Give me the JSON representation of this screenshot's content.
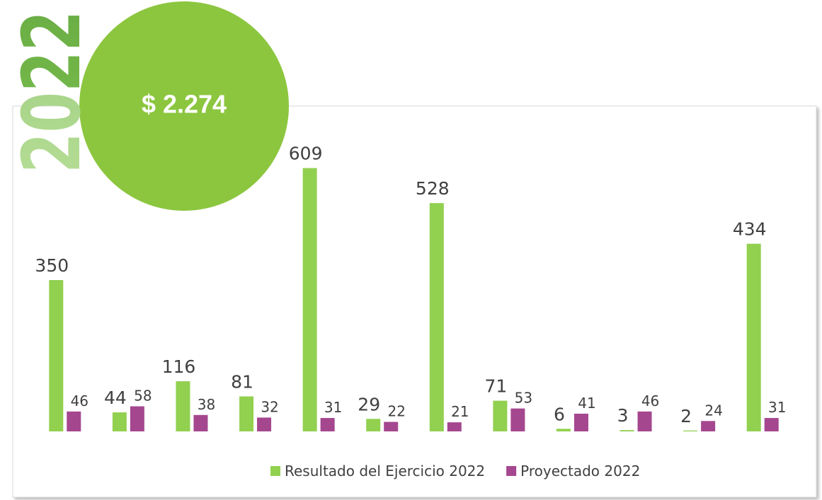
{
  "chart_data": {
    "type": "bar",
    "annotations": [
      "2022",
      "$ 2.274"
    ],
    "categories": [
      null,
      null,
      null,
      null,
      null,
      null,
      null,
      null,
      null,
      null,
      null,
      null
    ],
    "series": [
      {
        "name": "Resultado del Ejercicio 2022",
        "color": "#92d050",
        "values": [
          350,
          44,
          116,
          81,
          609,
          29,
          528,
          71,
          6,
          3,
          2,
          434
        ]
      },
      {
        "name": "Proyectado 2022",
        "color": "#a5478f",
        "values": [
          46,
          58,
          38,
          32,
          31,
          22,
          21,
          53,
          41,
          46,
          24,
          31
        ]
      }
    ],
    "ylim": [
      0,
      700
    ]
  }
}
